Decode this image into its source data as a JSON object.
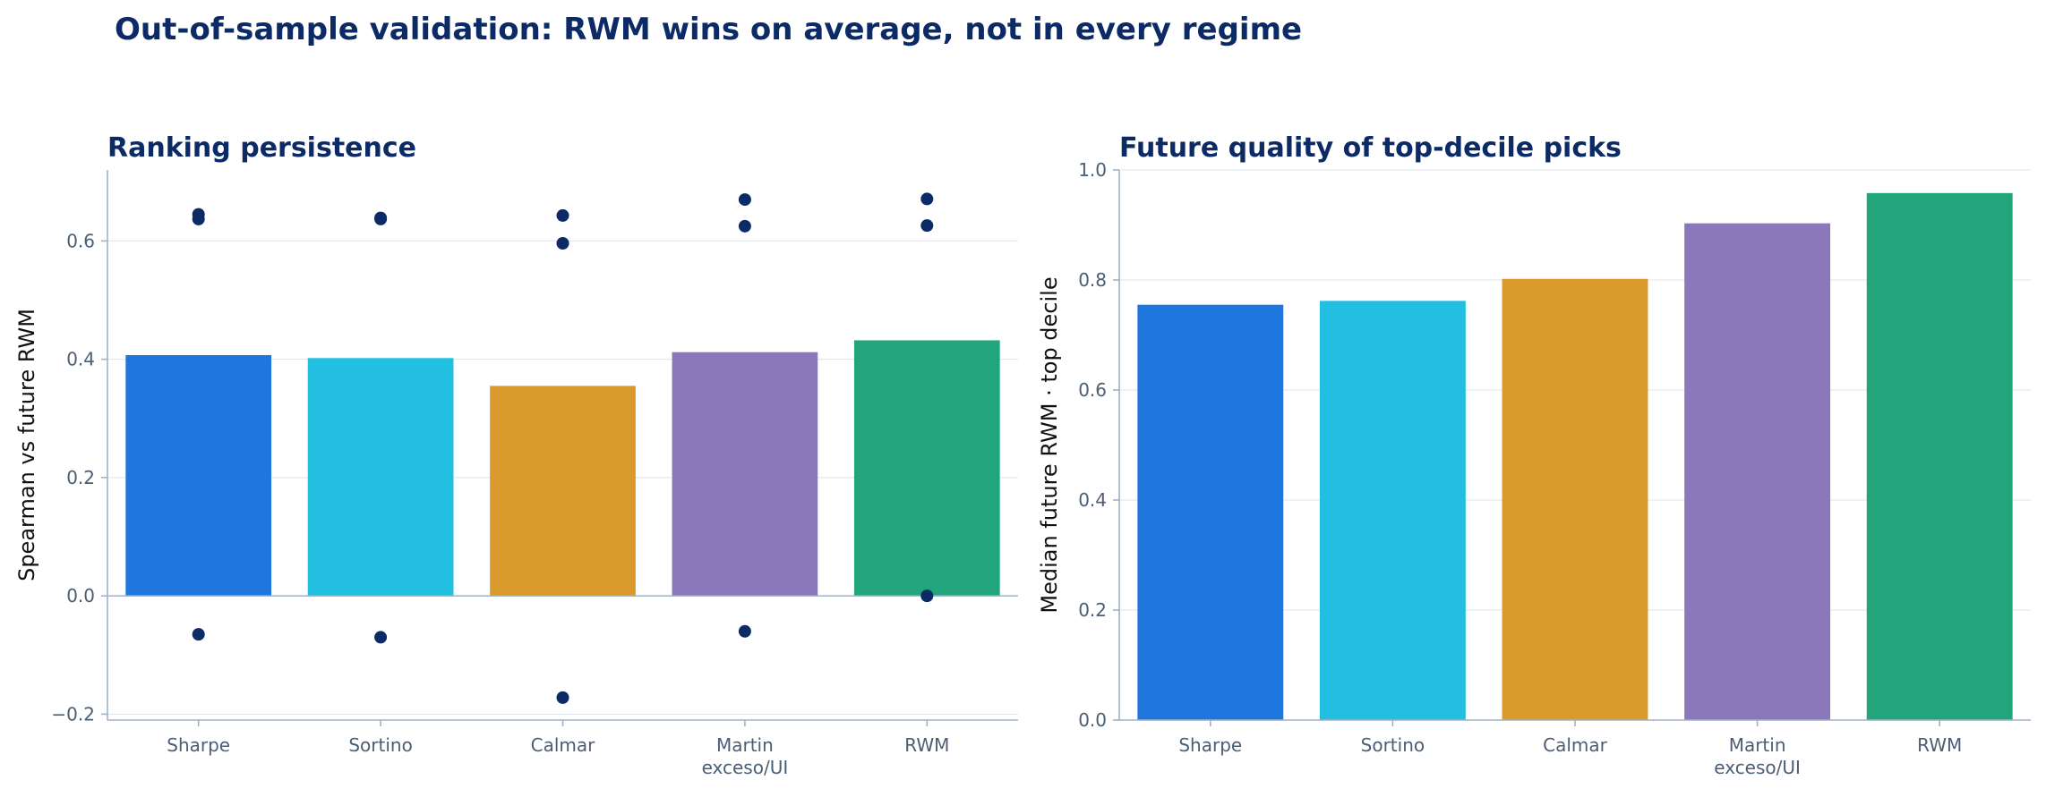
{
  "figure": {
    "title": "Out-of-sample validation: RWM wins on average, not in every regime"
  },
  "colors": {
    "title": "#0b2a66",
    "tick_text": "#4a5e75",
    "axis_line": "#9fb2c8",
    "grid": "#e3e9f0",
    "points": "#0b2a66",
    "bars": [
      "#1f77dd",
      "#22bfe0",
      "#d99a2b",
      "#8b78bb",
      "#22a57b"
    ]
  },
  "chart_data": [
    {
      "type": "bar",
      "title": "Ranking persistence",
      "xlabel": "",
      "ylabel": "Spearman vs future RWM",
      "categories": [
        "Sharpe",
        "Sortino",
        "Calmar",
        "Martin\nexceso/UI",
        "RWM"
      ],
      "values": [
        0.407,
        0.402,
        0.355,
        0.412,
        0.432
      ],
      "points": [
        [
          0.645,
          0.637,
          -0.065
        ],
        [
          0.639,
          0.637,
          -0.07
        ],
        [
          0.643,
          0.596,
          -0.172
        ],
        [
          0.67,
          0.625,
          -0.06
        ],
        [
          0.671,
          0.626,
          0.0
        ]
      ],
      "ylim": [
        -0.21,
        0.72
      ],
      "yticks": [
        -0.2,
        0.0,
        0.2,
        0.4,
        0.6
      ],
      "ytick_labels": [
        "−0.2",
        "0.0",
        "0.2",
        "0.4",
        "0.6"
      ],
      "grid": "horizontal",
      "zero_line": true
    },
    {
      "type": "bar",
      "title": "Future quality of top-decile picks",
      "xlabel": "",
      "ylabel": "Median future RWM · top decile",
      "categories": [
        "Sharpe",
        "Sortino",
        "Calmar",
        "Martin\nexceso/UI",
        "RWM"
      ],
      "values": [
        0.755,
        0.762,
        0.802,
        0.903,
        0.958
      ],
      "ylim": [
        0.0,
        1.0
      ],
      "yticks": [
        0.0,
        0.2,
        0.4,
        0.6,
        0.8,
        1.0
      ],
      "ytick_labels": [
        "0.0",
        "0.2",
        "0.4",
        "0.6",
        "0.8",
        "1.0"
      ],
      "grid": "horizontal"
    }
  ]
}
